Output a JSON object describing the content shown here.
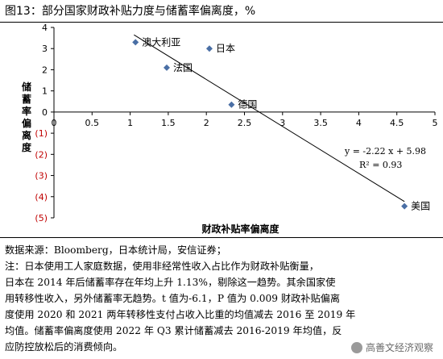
{
  "figure": {
    "title": "图13：部分国家财政补贴力度与储蓄率偏离度，%"
  },
  "chart_data": {
    "type": "scatter",
    "xlabel": "财政补贴率偏离度",
    "ylabel": "储蓄率偏离度",
    "xlim": [
      0,
      5
    ],
    "ylim": [
      -5,
      4
    ],
    "x_ticks": [
      "0",
      "0.5",
      "1",
      "1.5",
      "2",
      "2.5",
      "3",
      "3.5",
      "4",
      "4.5",
      "5"
    ],
    "y_ticks": [
      "4",
      "3",
      "2",
      "1",
      "0",
      "(1)",
      "(2)",
      "(3)",
      "(4)",
      "(5)"
    ],
    "grid": false,
    "points": [
      {
        "label": "澳大利亚",
        "x": 1.07,
        "y": 3.3
      },
      {
        "label": "日本",
        "x": 2.04,
        "y": 3.0
      },
      {
        "label": "法国",
        "x": 1.48,
        "y": 2.1
      },
      {
        "label": "德国",
        "x": 2.33,
        "y": 0.35
      },
      {
        "label": "美国",
        "x": 4.6,
        "y": -4.45
      }
    ],
    "trendline": {
      "slope": -2.22,
      "intercept": 5.98,
      "x_range": [
        1.05,
        4.6
      ]
    },
    "annotations": {
      "equation": "y = -2.22 x + 5.98",
      "r_squared": "R² = 0.93"
    },
    "colors": {
      "marker": "#4a6fa5",
      "negative_tick": "#c00000",
      "line": "#000000"
    }
  },
  "notes": {
    "source": "数据来源：Bloomberg，日本统计局，安信证券；",
    "lines": [
      "注：日本使用工人家庭数据，使用非经常性收入占比作为财政补贴衡量，",
      "日本在 2014 年后储蓄率存在年均上升 1.13%，剔除这一趋势。其余国家使",
      "用转移性收入，另外储蓄率无趋势。t 值为-6.1，P 值为 0.009 财政补贴偏离",
      "度使用 2020 和 2021 两年转移性支付占收入比重的均值减去 2016 至 2019 年",
      "均值。储蓄率偏离度使用 2022 年 Q3 累计储蓄减去 2016-2019 年均值，反",
      "应防控放松后的消费倾向。"
    ]
  },
  "watermark": {
    "text": "高善文经济观察",
    "icon": "wechat-icon"
  }
}
